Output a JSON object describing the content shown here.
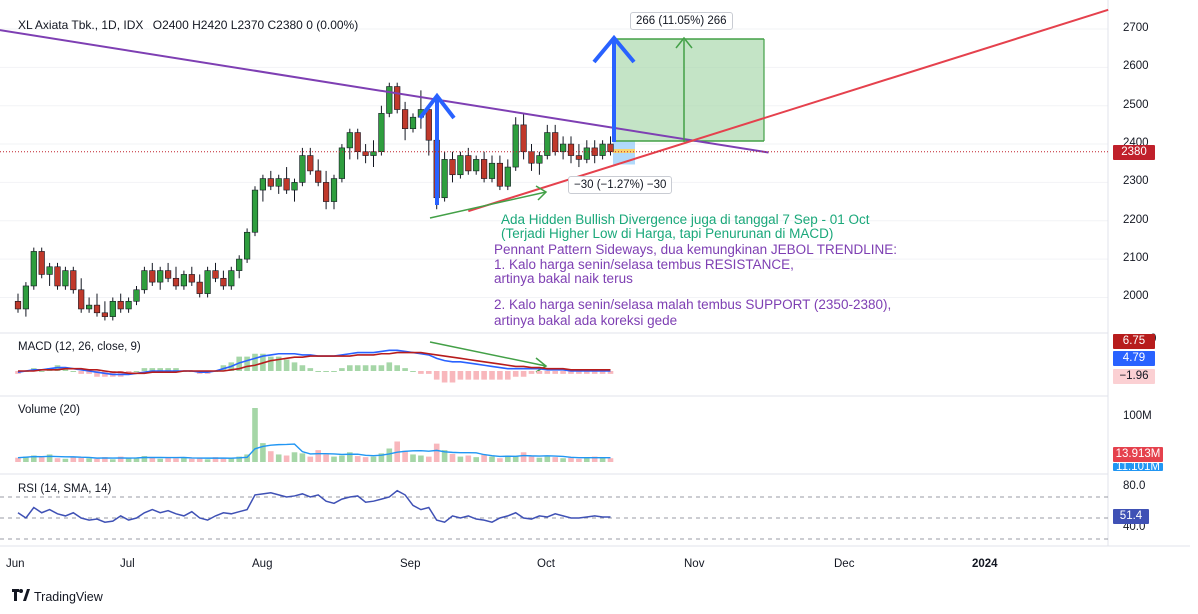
{
  "header": {
    "symbol": "XL Axiata Tbk., 1D, IDX",
    "ohlc": "O2400  H2420  L2370  C2380  0 (0.00%)"
  },
  "panes": {
    "macd_title": "MACD (12, 26, close, 9)",
    "volume_title": "Volume (20)",
    "rsi_title": "RSI (14, SMA, 14)"
  },
  "tags": {
    "price": "2380",
    "macd_a": "6.75",
    "macd_b": "4.79",
    "macd_c": "−1.96",
    "vol_a": "13.913M",
    "vol_b": "11.101M",
    "rsi": "51.4"
  },
  "measure_boxes": {
    "up": "266 (11.05%) 266",
    "down": "−30 (−1.27%) −30"
  },
  "notes": {
    "divergence_1": "Ada Hidden Bullish Divergence juga di tanggal 7 Sep - 01 Oct",
    "divergence_2": "(Terjadi Higher Low di Harga, tapi Penurunan di MACD)",
    "pennant": "Pennant Pattern Sideways, dua kemungkinan JEBOL TRENDLINE:",
    "opt1_a": "1. Kalo harga senin/selasa tembus RESISTANCE,",
    "opt1_b": "artinya bakal naik terus",
    "opt2_a": "2. Kalo harga senin/selasa malah tembus SUPPORT (2350-2380),",
    "opt2_b": "artinya bakal ada koreksi gede"
  },
  "footer": {
    "brand": "TradingView"
  },
  "colors": {
    "up": "#089981",
    "down": "#f23645",
    "up_candle": "#2e9e3e",
    "down_candle": "#c0392b",
    "resistance": "#7e3fb3",
    "support": "#e5414d",
    "macd": "#2962ff",
    "signal": "#b71c1c",
    "volume_ma": "#2196f3",
    "rsi": "#3f51b5",
    "arrow_blue": "#2962ff",
    "arrow_green": "#43a047"
  },
  "chart_data": {
    "type": "candlestick",
    "title": "XL Axiata Tbk., 1D, IDX",
    "x_ticks": [
      "Jun",
      "Jul",
      "Aug",
      "Sep",
      "Oct",
      "Nov",
      "Dec",
      "2024"
    ],
    "price_axis": {
      "ticks": [
        2000,
        2100,
        2200,
        2300,
        2400,
        2500,
        2600,
        2700
      ],
      "range": [
        1930,
        2740
      ]
    },
    "last": {
      "open": 2400,
      "high": 2420,
      "low": 2370,
      "close": 2380,
      "change": 0,
      "change_pct": 0.0
    },
    "candles": [
      [
        1990,
        2010,
        1960,
        1970
      ],
      [
        1970,
        2040,
        1950,
        2030
      ],
      [
        2030,
        2130,
        2020,
        2120
      ],
      [
        2120,
        2130,
        2050,
        2060
      ],
      [
        2060,
        2090,
        2030,
        2080
      ],
      [
        2080,
        2090,
        2020,
        2030
      ],
      [
        2030,
        2080,
        2020,
        2070
      ],
      [
        2070,
        2080,
        2010,
        2020
      ],
      [
        2020,
        2050,
        1960,
        1970
      ],
      [
        1970,
        2000,
        1960,
        1980
      ],
      [
        1980,
        2010,
        1950,
        1960
      ],
      [
        1960,
        1990,
        1940,
        1950
      ],
      [
        1950,
        2000,
        1940,
        1990
      ],
      [
        1990,
        2010,
        1960,
        1970
      ],
      [
        1970,
        2000,
        1960,
        1990
      ],
      [
        1990,
        2030,
        1980,
        2020
      ],
      [
        2020,
        2080,
        2010,
        2070
      ],
      [
        2070,
        2090,
        2030,
        2040
      ],
      [
        2040,
        2080,
        2020,
        2070
      ],
      [
        2070,
        2090,
        2040,
        2050
      ],
      [
        2050,
        2080,
        2020,
        2030
      ],
      [
        2030,
        2070,
        2020,
        2060
      ],
      [
        2060,
        2080,
        2030,
        2040
      ],
      [
        2040,
        2060,
        2000,
        2010
      ],
      [
        2010,
        2080,
        2000,
        2070
      ],
      [
        2070,
        2090,
        2040,
        2050
      ],
      [
        2050,
        2070,
        2020,
        2030
      ],
      [
        2030,
        2080,
        2020,
        2070
      ],
      [
        2070,
        2110,
        2050,
        2100
      ],
      [
        2100,
        2180,
        2090,
        2170
      ],
      [
        2170,
        2290,
        2160,
        2280
      ],
      [
        2280,
        2320,
        2250,
        2310
      ],
      [
        2310,
        2330,
        2280,
        2290
      ],
      [
        2290,
        2320,
        2270,
        2310
      ],
      [
        2310,
        2340,
        2270,
        2280
      ],
      [
        2280,
        2310,
        2250,
        2300
      ],
      [
        2300,
        2390,
        2290,
        2370
      ],
      [
        2370,
        2390,
        2320,
        2330
      ],
      [
        2330,
        2360,
        2290,
        2300
      ],
      [
        2300,
        2330,
        2230,
        2250
      ],
      [
        2250,
        2320,
        2230,
        2310
      ],
      [
        2310,
        2400,
        2300,
        2390
      ],
      [
        2390,
        2440,
        2360,
        2430
      ],
      [
        2430,
        2440,
        2360,
        2380
      ],
      [
        2380,
        2400,
        2350,
        2370
      ],
      [
        2370,
        2410,
        2340,
        2380
      ],
      [
        2380,
        2500,
        2370,
        2480
      ],
      [
        2480,
        2560,
        2470,
        2550
      ],
      [
        2550,
        2560,
        2480,
        2490
      ],
      [
        2490,
        2510,
        2410,
        2440
      ],
      [
        2440,
        2480,
        2430,
        2470
      ],
      [
        2470,
        2540,
        2440,
        2490
      ],
      [
        2490,
        2500,
        2370,
        2410
      ],
      [
        2410,
        2420,
        2230,
        2260
      ],
      [
        2260,
        2380,
        2250,
        2360
      ],
      [
        2360,
        2380,
        2300,
        2320
      ],
      [
        2320,
        2380,
        2310,
        2370
      ],
      [
        2370,
        2390,
        2320,
        2330
      ],
      [
        2330,
        2370,
        2320,
        2360
      ],
      [
        2360,
        2380,
        2300,
        2310
      ],
      [
        2310,
        2370,
        2300,
        2350
      ],
      [
        2350,
        2370,
        2280,
        2290
      ],
      [
        2290,
        2360,
        2280,
        2340
      ],
      [
        2340,
        2470,
        2330,
        2450
      ],
      [
        2450,
        2480,
        2360,
        2380
      ],
      [
        2380,
        2400,
        2330,
        2350
      ],
      [
        2350,
        2380,
        2320,
        2370
      ],
      [
        2370,
        2450,
        2360,
        2430
      ],
      [
        2430,
        2450,
        2370,
        2380
      ],
      [
        2380,
        2420,
        2360,
        2400
      ],
      [
        2400,
        2420,
        2350,
        2370
      ],
      [
        2370,
        2400,
        2340,
        2360
      ],
      [
        2360,
        2410,
        2350,
        2390
      ],
      [
        2390,
        2410,
        2350,
        2370
      ],
      [
        2370,
        2410,
        2360,
        2400
      ],
      [
        2400,
        2420,
        2370,
        2380
      ]
    ],
    "trendlines": [
      {
        "name": "resistance",
        "from": [
          -23,
          2765
        ],
        "to": [
          95,
          2378
        ]
      },
      {
        "name": "support",
        "from": [
          57,
          2225
        ],
        "to": [
          138,
          2750
        ]
      }
    ],
    "long_position": {
      "entry": 2408,
      "target": 2674,
      "stop": 2378,
      "target_label": "266 (11.05%) 266",
      "stop_label": "−30 (−1.27%) −30"
    },
    "macd": {
      "scale": [
        -10,
        25
      ],
      "macd": [
        -1,
        0,
        1,
        1,
        2,
        3,
        3,
        2,
        1,
        0,
        -1,
        -2,
        -3,
        -3,
        -3,
        -2,
        -1,
        0,
        0,
        0,
        0,
        0,
        0,
        -1,
        -1,
        0,
        2,
        4,
        7,
        9,
        11,
        13,
        14,
        15,
        15,
        15,
        14,
        14,
        13,
        13,
        13,
        14,
        15,
        16,
        16,
        16,
        17,
        18,
        18,
        17,
        16,
        15,
        14,
        11,
        9,
        8,
        8,
        7,
        6,
        5,
        4,
        3,
        2,
        2,
        2,
        2,
        2,
        1,
        1,
        1,
        0,
        0,
        0,
        0,
        0,
        0
      ],
      "signal": [
        0,
        0,
        0,
        1,
        1,
        1,
        2,
        2,
        2,
        1,
        1,
        0,
        -1,
        -1,
        -2,
        -2,
        -2,
        -1,
        -1,
        -1,
        -1,
        0,
        0,
        0,
        0,
        0,
        0,
        1,
        2,
        4,
        5,
        7,
        9,
        10,
        11,
        12,
        12,
        13,
        13,
        13,
        13,
        13,
        13,
        14,
        14,
        14,
        15,
        15,
        16,
        16,
        16,
        16,
        15,
        14,
        13,
        12,
        11,
        10,
        9,
        8,
        7,
        6,
        5,
        4,
        4,
        3,
        3,
        2,
        2,
        2,
        1,
        1,
        1,
        1,
        1,
        1
      ]
    },
    "volume": {
      "max": 100,
      "values": [
        8,
        10,
        12,
        9,
        14,
        7,
        6,
        9,
        8,
        7,
        6,
        9,
        5,
        10,
        7,
        8,
        11,
        9,
        6,
        8,
        7,
        9,
        6,
        8,
        5,
        9,
        6,
        8,
        10,
        14,
        100,
        35,
        20,
        14,
        12,
        18,
        16,
        10,
        22,
        14,
        10,
        12,
        18,
        11,
        9,
        10,
        16,
        25,
        38,
        21,
        14,
        12,
        10,
        34,
        22,
        15,
        10,
        12,
        9,
        14,
        10,
        7,
        12,
        11,
        18,
        10,
        8,
        10,
        9,
        7,
        8,
        6,
        8,
        10,
        9,
        7
      ]
    },
    "rsi": {
      "scale": [
        30,
        85
      ],
      "levels": [
        70,
        50,
        30
      ],
      "values": [
        55,
        50,
        60,
        55,
        58,
        54,
        52,
        55,
        50,
        48,
        49,
        46,
        47,
        52,
        48,
        50,
        55,
        58,
        55,
        57,
        54,
        52,
        56,
        50,
        48,
        52,
        55,
        54,
        56,
        58,
        72,
        73,
        74,
        72,
        70,
        71,
        73,
        70,
        72,
        66,
        64,
        68,
        70,
        71,
        65,
        66,
        68,
        70,
        76,
        72,
        62,
        58,
        60,
        48,
        46,
        52,
        50,
        52,
        49,
        48,
        46,
        50,
        52,
        55,
        50,
        49,
        52,
        51,
        54,
        52,
        50,
        50,
        51,
        52,
        51,
        51
      ]
    }
  }
}
